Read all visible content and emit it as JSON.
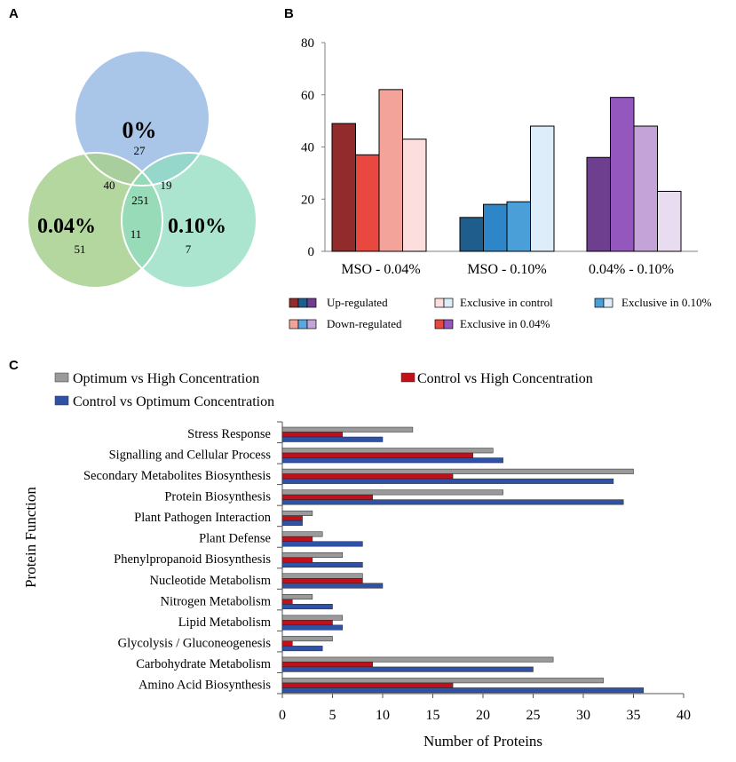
{
  "panel_labels": {
    "a": "A",
    "b": "B",
    "c": "C"
  },
  "colors": {
    "venn": [
      "#a9c6e8",
      "#a7cf8e",
      "#8fdcc0"
    ],
    "upregulated": [
      "#922b2b",
      "#1f5e8c",
      "#6e3f8f"
    ],
    "downregulated": [
      "#f4a39a",
      "#5aa8de",
      "#c4a4d8"
    ],
    "exclusive_control": [
      "#fbdedd",
      "#d6e9f7",
      "#e7dcf0"
    ],
    "exclusive_004": [
      "#e8483f",
      "#2e86c9",
      "#9457bd"
    ],
    "exclusive_010": [
      "#4a9fd8",
      "#ddeefa"
    ],
    "optimum_vs_high": "#9a9a9a",
    "control_vs_high": "#c0101a",
    "control_vs_optimum": "#2f52a7"
  },
  "chart_data": [
    {
      "type": "venn",
      "sets": [
        "0%",
        "0.04%",
        "0.10%"
      ],
      "regions": {
        "only_0": 27,
        "only_004": 51,
        "only_010": 7,
        "0_and_004": 40,
        "0_and_010": 19,
        "004_and_010": 11,
        "all_three": 251
      }
    },
    {
      "type": "bar",
      "categories": [
        "MSO - 0.04%",
        "MSO - 0.10%",
        "0.04% - 0.10%"
      ],
      "series": [
        {
          "name": "Up-regulated",
          "values": [
            49,
            13,
            36
          ]
        },
        {
          "name": "Exclusive in 0.04%",
          "values": [
            37,
            18,
            59
          ]
        },
        {
          "name": "Down-regulated",
          "values": [
            62,
            19,
            48
          ]
        },
        {
          "name": "Exclusive in control",
          "values": [
            43,
            48,
            23
          ]
        }
      ],
      "ylim": [
        0,
        80
      ],
      "yticks": [
        0,
        20,
        40,
        60,
        80
      ],
      "legend": [
        {
          "label": "Up-regulated",
          "swatches": 3
        },
        {
          "label": "Exclusive in control",
          "swatches": 2
        },
        {
          "label": "Exclusive in 0.10%",
          "swatches": 2
        },
        {
          "label": "Down-regulated",
          "swatches": 3
        },
        {
          "label": "Exclusive in 0.04%",
          "swatches": 2
        }
      ]
    },
    {
      "type": "bar",
      "orientation": "horizontal",
      "ylabel": "Protein Function",
      "xlabel": "Number of Proteins",
      "xlim": [
        0,
        40
      ],
      "xticks": [
        0,
        5,
        10,
        15,
        20,
        25,
        30,
        35,
        40
      ],
      "categories": [
        "Stress Response",
        "Signalling and Cellular Process",
        "Secondary Metabolites Biosynthesis",
        "Protein Biosynthesis",
        "Plant Pathogen Interaction",
        "Plant Defense",
        "Phenylpropanoid Biosynthesis",
        "Nucleotide Metabolism",
        "Nitrogen Metabolism",
        "Lipid Metabolism",
        "Glycolysis / Gluconeogenesis",
        "Carbohydrate Metabolism",
        "Amino Acid Biosynthesis"
      ],
      "series": [
        {
          "name": "Optimum vs High Concentration",
          "values": [
            13,
            21,
            35,
            22,
            3,
            4,
            6,
            8,
            3,
            6,
            5,
            27,
            32
          ]
        },
        {
          "name": "Control vs High Concentration",
          "values": [
            6,
            19,
            17,
            9,
            2,
            3,
            3,
            8,
            1,
            5,
            1,
            9,
            17
          ]
        },
        {
          "name": "Control vs Optimum Concentration",
          "values": [
            10,
            22,
            33,
            34,
            2,
            8,
            8,
            10,
            5,
            6,
            4,
            25,
            36
          ]
        }
      ]
    }
  ]
}
